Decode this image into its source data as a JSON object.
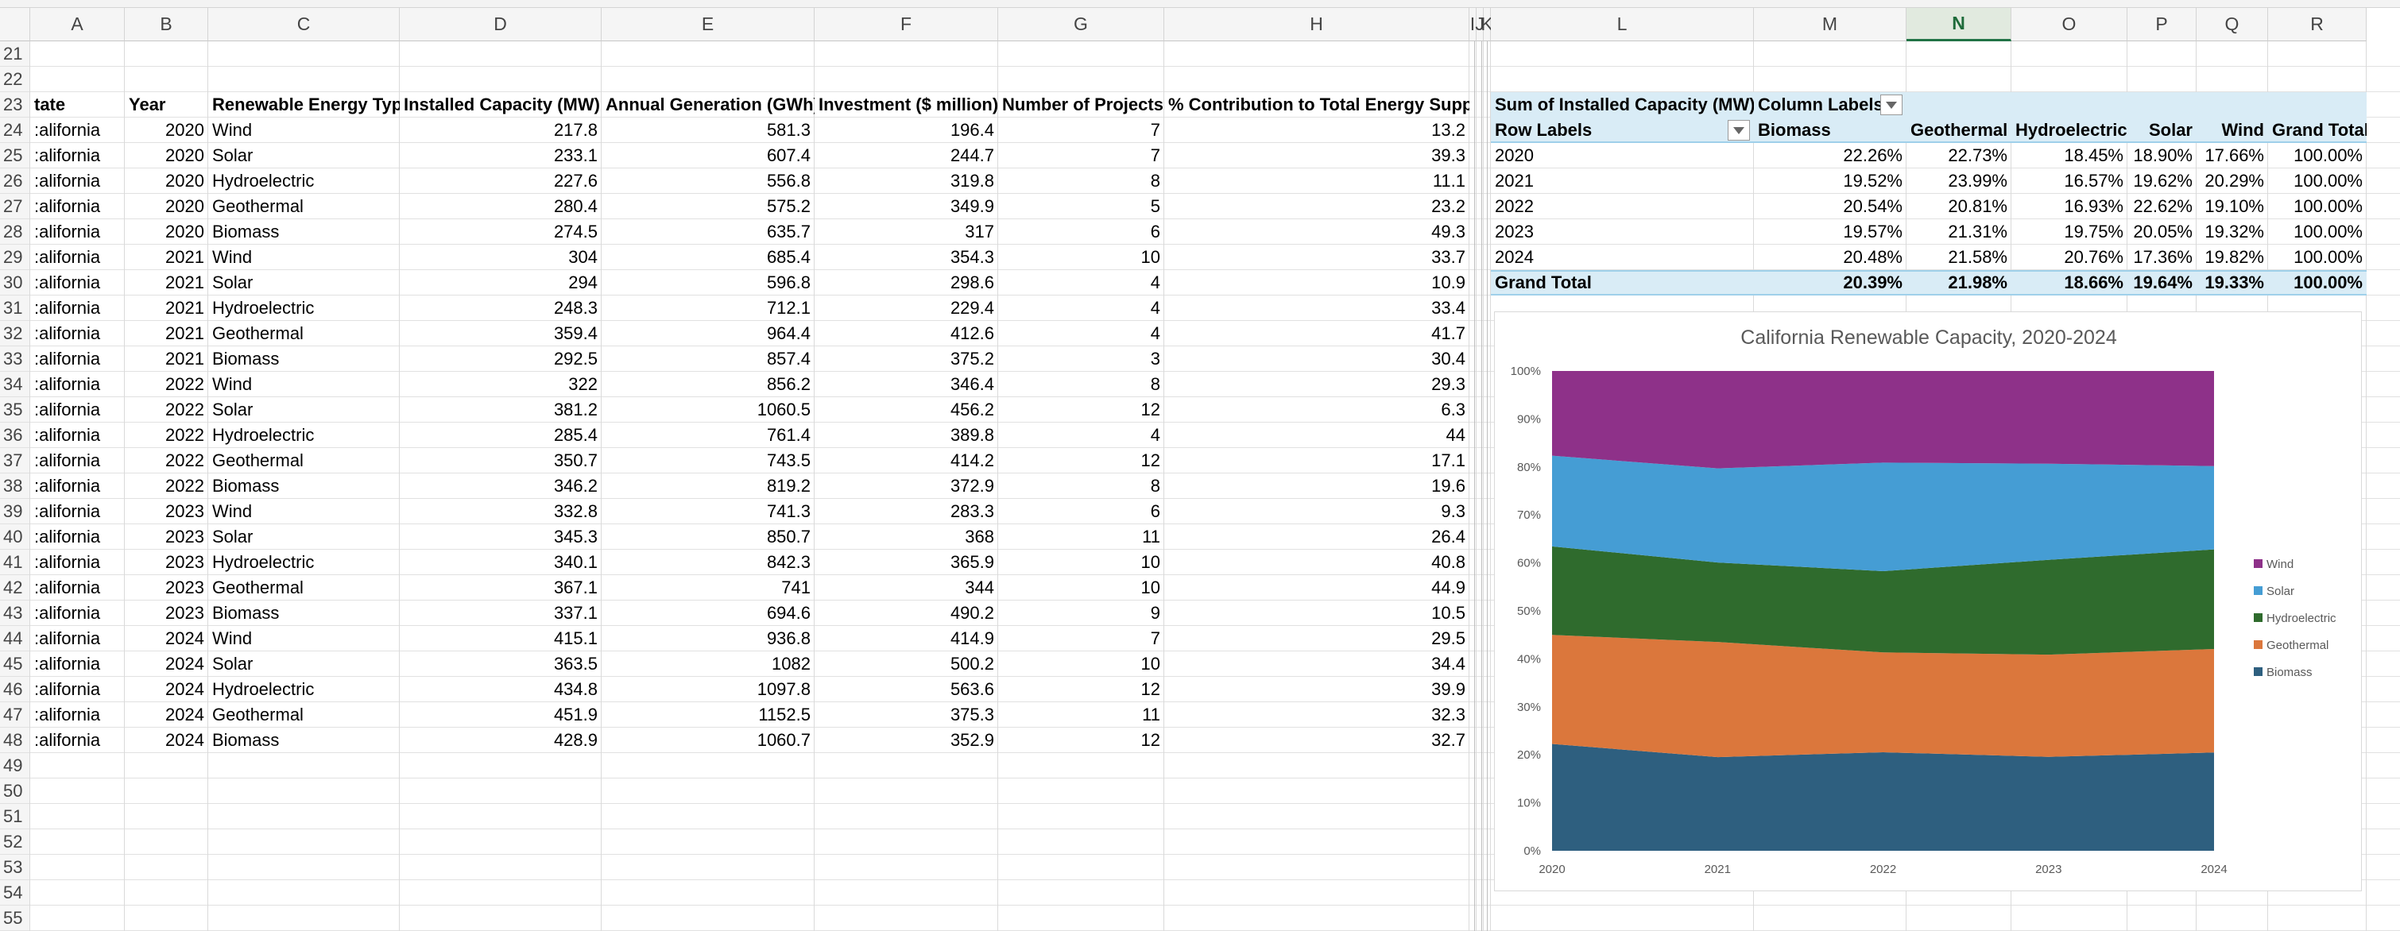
{
  "columns": [
    "A",
    "B",
    "C",
    "D",
    "E",
    "F",
    "G",
    "H",
    "I",
    "J",
    "K",
    "L",
    "M",
    "N",
    "O",
    "P",
    "Q",
    "R"
  ],
  "selected_column": "N",
  "rows": [
    "21",
    "22",
    "23",
    "24",
    "25",
    "26",
    "27",
    "28",
    "29",
    "30",
    "31",
    "32",
    "33",
    "34",
    "35",
    "36",
    "37",
    "38",
    "39",
    "40",
    "41",
    "42",
    "43",
    "44",
    "45",
    "46",
    "47",
    "48",
    "49",
    "50",
    "51",
    "52",
    "53",
    "54",
    "55"
  ],
  "table": {
    "headers": [
      "tate",
      "Year",
      "Renewable Energy Type",
      "Installed Capacity (MW)",
      "Annual Generation (GWh)",
      "Investment ($ million)",
      "Number of Projects",
      "% Contribution to Total Energy Supply"
    ],
    "rows": [
      [
        ":alifornia",
        "2020",
        "Wind",
        "217.8",
        "581.3",
        "196.4",
        "7",
        "13.2"
      ],
      [
        ":alifornia",
        "2020",
        "Solar",
        "233.1",
        "607.4",
        "244.7",
        "7",
        "39.3"
      ],
      [
        ":alifornia",
        "2020",
        "Hydroelectric",
        "227.6",
        "556.8",
        "319.8",
        "8",
        "11.1"
      ],
      [
        ":alifornia",
        "2020",
        "Geothermal",
        "280.4",
        "575.2",
        "349.9",
        "5",
        "23.2"
      ],
      [
        ":alifornia",
        "2020",
        "Biomass",
        "274.5",
        "635.7",
        "317",
        "6",
        "49.3"
      ],
      [
        ":alifornia",
        "2021",
        "Wind",
        "304",
        "685.4",
        "354.3",
        "10",
        "33.7"
      ],
      [
        ":alifornia",
        "2021",
        "Solar",
        "294",
        "596.8",
        "298.6",
        "4",
        "10.9"
      ],
      [
        ":alifornia",
        "2021",
        "Hydroelectric",
        "248.3",
        "712.1",
        "229.4",
        "4",
        "33.4"
      ],
      [
        ":alifornia",
        "2021",
        "Geothermal",
        "359.4",
        "964.4",
        "412.6",
        "4",
        "41.7"
      ],
      [
        ":alifornia",
        "2021",
        "Biomass",
        "292.5",
        "857.4",
        "375.2",
        "3",
        "30.4"
      ],
      [
        ":alifornia",
        "2022",
        "Wind",
        "322",
        "856.2",
        "346.4",
        "8",
        "29.3"
      ],
      [
        ":alifornia",
        "2022",
        "Solar",
        "381.2",
        "1060.5",
        "456.2",
        "12",
        "6.3"
      ],
      [
        ":alifornia",
        "2022",
        "Hydroelectric",
        "285.4",
        "761.4",
        "389.8",
        "4",
        "44"
      ],
      [
        ":alifornia",
        "2022",
        "Geothermal",
        "350.7",
        "743.5",
        "414.2",
        "12",
        "17.1"
      ],
      [
        ":alifornia",
        "2022",
        "Biomass",
        "346.2",
        "819.2",
        "372.9",
        "8",
        "19.6"
      ],
      [
        ":alifornia",
        "2023",
        "Wind",
        "332.8",
        "741.3",
        "283.3",
        "6",
        "9.3"
      ],
      [
        ":alifornia",
        "2023",
        "Solar",
        "345.3",
        "850.7",
        "368",
        "11",
        "26.4"
      ],
      [
        ":alifornia",
        "2023",
        "Hydroelectric",
        "340.1",
        "842.3",
        "365.9",
        "10",
        "40.8"
      ],
      [
        ":alifornia",
        "2023",
        "Geothermal",
        "367.1",
        "741",
        "344",
        "10",
        "44.9"
      ],
      [
        ":alifornia",
        "2023",
        "Biomass",
        "337.1",
        "694.6",
        "490.2",
        "9",
        "10.5"
      ],
      [
        ":alifornia",
        "2024",
        "Wind",
        "415.1",
        "936.8",
        "414.9",
        "7",
        "29.5"
      ],
      [
        ":alifornia",
        "2024",
        "Solar",
        "363.5",
        "1082",
        "500.2",
        "10",
        "34.4"
      ],
      [
        ":alifornia",
        "2024",
        "Hydroelectric",
        "434.8",
        "1097.8",
        "563.6",
        "12",
        "39.9"
      ],
      [
        ":alifornia",
        "2024",
        "Geothermal",
        "451.9",
        "1152.5",
        "375.3",
        "11",
        "32.3"
      ],
      [
        ":alifornia",
        "2024",
        "Biomass",
        "428.9",
        "1060.7",
        "352.9",
        "12",
        "32.7"
      ]
    ]
  },
  "pivot": {
    "title": "Sum of Installed Capacity (MW)",
    "column_labels": "Column Labels",
    "row_labels": "Row Labels",
    "headers": [
      "Biomass",
      "Geothermal",
      "Hydroelectric",
      "Solar",
      "Wind",
      "Grand Total"
    ],
    "rows": [
      {
        "label": "2020",
        "values": [
          "22.26%",
          "22.73%",
          "18.45%",
          "18.90%",
          "17.66%",
          "100.00%"
        ]
      },
      {
        "label": "2021",
        "values": [
          "19.52%",
          "23.99%",
          "16.57%",
          "19.62%",
          "20.29%",
          "100.00%"
        ]
      },
      {
        "label": "2022",
        "values": [
          "20.54%",
          "20.81%",
          "16.93%",
          "22.62%",
          "19.10%",
          "100.00%"
        ]
      },
      {
        "label": "2023",
        "values": [
          "19.57%",
          "21.31%",
          "19.75%",
          "20.05%",
          "19.32%",
          "100.00%"
        ]
      },
      {
        "label": "2024",
        "values": [
          "20.48%",
          "21.58%",
          "20.76%",
          "17.36%",
          "19.82%",
          "100.00%"
        ]
      }
    ],
    "grand_total": {
      "label": "Grand Total",
      "values": [
        "20.39%",
        "21.98%",
        "18.66%",
        "19.64%",
        "19.33%",
        "100.00%"
      ]
    }
  },
  "chart_data": {
    "type": "area",
    "stacked": "percent",
    "title": "California Renewable Capacity, 2020-2024",
    "x": [
      "2020",
      "2021",
      "2022",
      "2023",
      "2024"
    ],
    "ylim": [
      0,
      100
    ],
    "yticks": [
      "0%",
      "10%",
      "20%",
      "30%",
      "40%",
      "50%",
      "60%",
      "70%",
      "80%",
      "90%",
      "100%"
    ],
    "legend_position": "right",
    "series": [
      {
        "name": "Biomass",
        "color": "#2e5f7f",
        "values": [
          22.26,
          19.52,
          20.54,
          19.57,
          20.48
        ]
      },
      {
        "name": "Geothermal",
        "color": "#db773c",
        "values": [
          22.73,
          23.99,
          20.81,
          21.31,
          21.58
        ]
      },
      {
        "name": "Hydroelectric",
        "color": "#2f6b2d",
        "values": [
          18.45,
          16.57,
          16.93,
          19.75,
          20.76
        ]
      },
      {
        "name": "Solar",
        "color": "#459dd4",
        "values": [
          18.9,
          19.62,
          22.62,
          20.05,
          17.36
        ]
      },
      {
        "name": "Wind",
        "color": "#8e3189",
        "values": [
          17.66,
          20.29,
          19.1,
          19.32,
          19.82
        ]
      }
    ],
    "legend_order": [
      "Wind",
      "Solar",
      "Hydroelectric",
      "Geothermal",
      "Biomass"
    ]
  }
}
